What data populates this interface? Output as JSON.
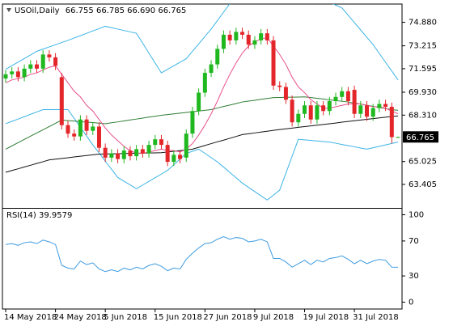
{
  "chart_data": [
    {
      "type": "candlestick",
      "header": {
        "symbol": "USOil,Daily",
        "open": "66.755",
        "high": "66.785",
        "low": "66.690",
        "close": "66.765"
      },
      "categories": [
        "14 May 2018",
        null,
        null,
        null,
        null,
        null,
        null,
        null,
        "24 May 2018",
        null,
        null,
        null,
        null,
        null,
        null,
        null,
        "5 Jun 2018",
        null,
        null,
        null,
        null,
        null,
        null,
        null,
        "15 Jun 2018",
        null,
        null,
        null,
        null,
        null,
        null,
        null,
        "27 Jun 2018",
        null,
        null,
        null,
        null,
        null,
        null,
        null,
        "9 Jul 2018",
        null,
        null,
        null,
        null,
        null,
        null,
        null,
        "19 Jul 2018",
        null,
        null,
        null,
        null,
        null,
        null,
        null,
        "31 Jul 2018",
        null,
        null,
        null,
        null,
        null,
        null,
        null
      ],
      "open": [
        70.9,
        71.2,
        71.4,
        71.0,
        71.6,
        71.9,
        71.6,
        72.6,
        72.4,
        71.0,
        67.6,
        67.0,
        66.8,
        68.0,
        67.2,
        67.5,
        66.0,
        65.3,
        65.6,
        65.2,
        65.8,
        65.4,
        65.9,
        65.6,
        66.2,
        66.6,
        66.2,
        65.0,
        65.5,
        65.3,
        67.0,
        68.6,
        69.9,
        71.3,
        71.9,
        73.0,
        74.0,
        73.6,
        74.2,
        74.0,
        73.3,
        73.6,
        74.1,
        73.6,
        70.4,
        70.3,
        69.4,
        67.8,
        68.4,
        69.0,
        68.0,
        69.0,
        68.6,
        69.3,
        69.6,
        70.0,
        70.1,
        68.4,
        69.0,
        68.2,
        68.8,
        69.1,
        68.9,
        66.755
      ],
      "high": [
        71.5,
        71.7,
        71.7,
        71.9,
        72.2,
        72.2,
        72.9,
        72.9,
        72.7,
        71.3,
        67.9,
        67.3,
        68.3,
        68.3,
        67.8,
        67.8,
        66.3,
        65.9,
        65.9,
        66.1,
        66.1,
        66.2,
        66.2,
        66.5,
        66.9,
        66.9,
        66.5,
        65.8,
        65.8,
        67.3,
        68.9,
        70.2,
        71.6,
        72.2,
        73.3,
        74.3,
        74.3,
        74.5,
        74.5,
        74.3,
        73.9,
        74.4,
        74.4,
        73.9,
        70.7,
        70.6,
        69.7,
        68.7,
        69.3,
        69.3,
        69.3,
        69.3,
        69.6,
        69.9,
        70.3,
        70.3,
        70.4,
        69.3,
        69.3,
        69.1,
        69.4,
        69.4,
        69.2,
        66.785
      ],
      "low": [
        70.6,
        70.9,
        70.7,
        70.7,
        71.3,
        71.3,
        71.3,
        72.1,
        71.5,
        67.3,
        66.7,
        66.5,
        66.5,
        66.9,
        66.9,
        65.7,
        65.0,
        65.0,
        64.9,
        64.9,
        65.1,
        65.1,
        65.3,
        65.3,
        65.9,
        65.9,
        64.7,
        64.7,
        64.9,
        65.0,
        66.7,
        68.3,
        69.6,
        71.0,
        71.6,
        72.7,
        73.3,
        73.3,
        73.7,
        73.0,
        73.0,
        73.3,
        73.3,
        70.1,
        70.0,
        69.1,
        67.5,
        67.5,
        68.1,
        67.7,
        67.7,
        68.3,
        68.3,
        69.0,
        69.3,
        69.0,
        68.1,
        68.1,
        67.9,
        67.9,
        68.5,
        68.6,
        66.3,
        66.69
      ],
      "close": [
        71.2,
        71.4,
        71.0,
        71.6,
        71.9,
        71.6,
        72.6,
        72.4,
        71.8,
        67.6,
        67.0,
        66.8,
        68.0,
        67.2,
        67.5,
        66.0,
        65.3,
        65.6,
        65.2,
        65.8,
        65.4,
        65.9,
        65.6,
        66.2,
        66.6,
        66.2,
        65.0,
        65.5,
        65.2,
        67.0,
        68.6,
        69.9,
        71.3,
        71.9,
        73.0,
        74.0,
        73.6,
        74.2,
        74.0,
        73.3,
        73.6,
        74.1,
        73.6,
        70.4,
        70.3,
        69.4,
        67.8,
        68.4,
        69.0,
        68.0,
        69.0,
        68.6,
        69.3,
        69.6,
        70.0,
        69.3,
        68.4,
        69.0,
        68.2,
        68.8,
        69.1,
        68.9,
        66.75,
        66.765
      ],
      "up_color": "#1fb81f",
      "down_color": "#e3262a",
      "overlays": [
        {
          "color": "#3cb4e6",
          "values": [
            71.55,
            71.81,
            72.06,
            72.32,
            72.57,
            72.83,
            72.98,
            73.14,
            73.29,
            73.45,
            73.6,
            73.77,
            73.93,
            74.1,
            74.27,
            74.43,
            74.6,
            74.5,
            74.4,
            74.3,
            74.2,
            74.1,
            73.4,
            72.7,
            72.0,
            71.3,
            71.55,
            71.8,
            72.05,
            72.3,
            72.83,
            73.35,
            73.88,
            74.4,
            75.0,
            75.6,
            76.2,
            76.33,
            76.47,
            76.6,
            76.73,
            76.87,
            77.0,
            76.96,
            76.93,
            76.89,
            76.85,
            76.81,
            76.78,
            76.74,
            76.7,
            76.5,
            76.3,
            76.1,
            75.9,
            75.38,
            74.86,
            74.34,
            73.82,
            73.3,
            72.68,
            72.05,
            71.43,
            70.8
          ]
        },
        {
          "color": "#3cb4e6",
          "values": [
            67.7,
            67.87,
            68.03,
            68.2,
            68.37,
            68.53,
            68.7,
            68.7,
            68.7,
            68.7,
            68.7,
            68.08,
            67.45,
            66.83,
            66.2,
            65.63,
            65.05,
            64.48,
            63.9,
            63.63,
            63.37,
            63.1,
            63.36,
            63.62,
            63.88,
            64.14,
            64.4,
            64.8,
            65.2,
            65.6,
            65.75,
            65.9,
            65.6,
            65.3,
            65.0,
            64.63,
            64.25,
            63.88,
            63.5,
            63.2,
            62.9,
            62.6,
            62.3,
            62.65,
            63.0,
            64.2,
            65.4,
            66.6,
            66.56,
            66.52,
            66.48,
            66.44,
            66.4,
            66.32,
            66.23,
            66.15,
            66.07,
            65.98,
            65.9,
            66.0,
            66.1,
            66.2,
            66.3,
            66.4
          ]
        },
        {
          "color": "#2f7d32",
          "values": [
            65.9,
            66.13,
            66.36,
            66.59,
            66.82,
            67.05,
            67.27,
            67.5,
            67.73,
            67.96,
            67.92,
            67.89,
            67.85,
            67.81,
            67.78,
            67.74,
            67.7,
            67.77,
            67.83,
            67.9,
            67.97,
            68.03,
            68.1,
            68.17,
            68.23,
            68.3,
            68.35,
            68.4,
            68.45,
            68.5,
            68.55,
            68.6,
            68.65,
            68.7,
            68.81,
            68.92,
            69.02,
            69.13,
            69.24,
            69.3,
            69.36,
            69.43,
            69.49,
            69.55,
            69.56,
            69.57,
            69.58,
            69.59,
            69.6,
            69.55,
            69.5,
            69.45,
            69.39,
            69.34,
            69.29,
            69.24,
            69.16,
            69.09,
            69.01,
            68.93,
            68.86,
            68.78,
            68.7,
            68.65
          ]
        },
        {
          "color": "#111111",
          "values": [
            64.26,
            64.39,
            64.51,
            64.64,
            64.76,
            64.89,
            65.01,
            65.14,
            65.19,
            65.24,
            65.29,
            65.35,
            65.4,
            65.45,
            65.5,
            65.55,
            65.56,
            65.57,
            65.58,
            65.59,
            65.6,
            65.61,
            65.62,
            65.63,
            65.64,
            65.65,
            65.7,
            65.75,
            65.8,
            65.85,
            65.9,
            66.03,
            66.16,
            66.29,
            66.42,
            66.54,
            66.67,
            66.8,
            66.93,
            66.99,
            67.05,
            67.11,
            67.17,
            67.23,
            67.29,
            67.34,
            67.39,
            67.45,
            67.5,
            67.55,
            67.6,
            67.65,
            67.7,
            67.75,
            67.81,
            67.86,
            67.91,
            67.96,
            68.01,
            68.06,
            68.11,
            68.16,
            68.21,
            68.25
          ]
        },
        {
          "color": "#e8508c",
          "values": [
            70.6,
            70.8,
            70.9,
            71.0,
            71.2,
            71.3,
            71.5,
            71.7,
            71.8,
            71.2,
            70.6,
            70.0,
            69.6,
            69.0,
            68.6,
            68.0,
            67.4,
            66.9,
            66.5,
            66.1,
            65.8,
            65.6,
            65.6,
            65.7,
            65.8,
            65.9,
            65.8,
            65.8,
            65.7,
            65.9,
            66.3,
            66.9,
            67.6,
            68.4,
            69.3,
            70.3,
            71.2,
            72.0,
            72.7,
            73.2,
            73.5,
            73.7,
            73.8,
            73.2,
            72.6,
            71.9,
            71.0,
            70.3,
            69.9,
            69.4,
            69.1,
            68.8,
            68.8,
            68.9,
            69.0,
            69.1,
            69.1,
            69.1,
            69.0,
            68.9,
            68.9,
            68.8,
            68.6,
            68.4
          ]
        }
      ],
      "ylim": [
        61.8,
        76.0
      ],
      "yticks": [
        {
          "value": 74.88,
          "label": "74.880"
        },
        {
          "value": 73.215,
          "label": "73.215"
        },
        {
          "value": 71.595,
          "label": "71.595"
        },
        {
          "value": 69.93,
          "label": "69.930"
        },
        {
          "value": 68.31,
          "label": "68.310"
        },
        {
          "value": 65.025,
          "label": "65.025"
        },
        {
          "value": 63.405,
          "label": "63.405"
        }
      ]
    },
    {
      "type": "line",
      "title": "RSI(14)",
      "color": "#3d9be0",
      "values": [
        66,
        67,
        65,
        68,
        69,
        67,
        71,
        69,
        66,
        42,
        39,
        38,
        47,
        43,
        45,
        38,
        35,
        37,
        35,
        39,
        37,
        40,
        38,
        42,
        44,
        41,
        36,
        39,
        38,
        49,
        56,
        62,
        67,
        68,
        72,
        75,
        72,
        74,
        73,
        69,
        70,
        72,
        69,
        50,
        50,
        46,
        40,
        44,
        48,
        43,
        48,
        46,
        50,
        51,
        53,
        49,
        44,
        48,
        44,
        47,
        49,
        48,
        40,
        39.9579
      ],
      "ylim": [
        -6,
        106
      ],
      "yticks": [
        100,
        70,
        30,
        0
      ]
    }
  ]
}
